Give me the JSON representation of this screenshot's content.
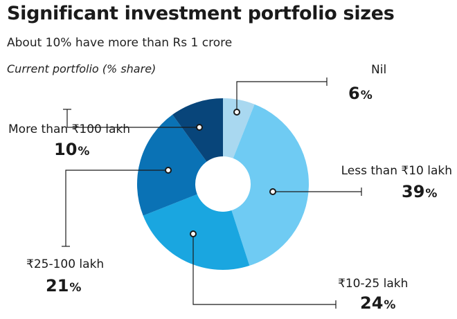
{
  "header": {
    "title": "Significant investment portfolio sizes",
    "subtitle": "About 10% have more than Rs 1 crore",
    "note": "Current portfolio (% share)"
  },
  "chart_data": {
    "type": "pie",
    "donut": true,
    "title": "Significant investment portfolio sizes",
    "subtitle": "About 10% have more than Rs 1 crore",
    "categories": [
      "Nil",
      "Less than ₹10 lakh",
      "₹10-25 lakh",
      "₹25-100 lakh",
      "More than ₹100 lakh"
    ],
    "values": [
      6,
      39,
      24,
      21,
      10
    ],
    "value_labels": [
      "6",
      "39",
      "24",
      "21",
      "10"
    ],
    "unit": "%",
    "colors": [
      "#a9d8f0",
      "#6fcbf3",
      "#1aa6e0",
      "#0a72b5",
      "#08457a"
    ]
  }
}
